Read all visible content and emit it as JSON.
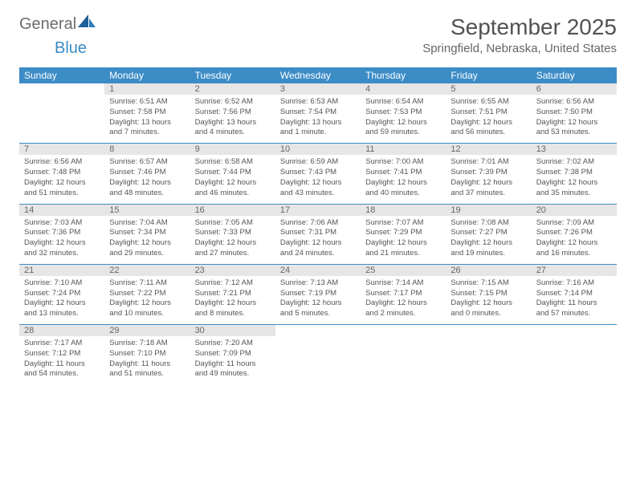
{
  "logo": {
    "part1": "General",
    "part2": "Blue"
  },
  "title": "September 2025",
  "location": "Springfield, Nebraska, United States",
  "colors": {
    "header_bg": "#3c8cc6",
    "header_text": "#ffffff",
    "daynum_bg": "#e6e6e6",
    "text": "#555555",
    "logo_gray": "#6b6b6b",
    "logo_blue": "#3b8bc4"
  },
  "weekdays": [
    "Sunday",
    "Monday",
    "Tuesday",
    "Wednesday",
    "Thursday",
    "Friday",
    "Saturday"
  ],
  "grid": [
    [
      {
        "n": "",
        "sr": "",
        "ss": "",
        "dl": ""
      },
      {
        "n": "1",
        "sr": "6:51 AM",
        "ss": "7:58 PM",
        "dl": "13 hours and 7 minutes."
      },
      {
        "n": "2",
        "sr": "6:52 AM",
        "ss": "7:56 PM",
        "dl": "13 hours and 4 minutes."
      },
      {
        "n": "3",
        "sr": "6:53 AM",
        "ss": "7:54 PM",
        "dl": "13 hours and 1 minute."
      },
      {
        "n": "4",
        "sr": "6:54 AM",
        "ss": "7:53 PM",
        "dl": "12 hours and 59 minutes."
      },
      {
        "n": "5",
        "sr": "6:55 AM",
        "ss": "7:51 PM",
        "dl": "12 hours and 56 minutes."
      },
      {
        "n": "6",
        "sr": "6:56 AM",
        "ss": "7:50 PM",
        "dl": "12 hours and 53 minutes."
      }
    ],
    [
      {
        "n": "7",
        "sr": "6:56 AM",
        "ss": "7:48 PM",
        "dl": "12 hours and 51 minutes."
      },
      {
        "n": "8",
        "sr": "6:57 AM",
        "ss": "7:46 PM",
        "dl": "12 hours and 48 minutes."
      },
      {
        "n": "9",
        "sr": "6:58 AM",
        "ss": "7:44 PM",
        "dl": "12 hours and 46 minutes."
      },
      {
        "n": "10",
        "sr": "6:59 AM",
        "ss": "7:43 PM",
        "dl": "12 hours and 43 minutes."
      },
      {
        "n": "11",
        "sr": "7:00 AM",
        "ss": "7:41 PM",
        "dl": "12 hours and 40 minutes."
      },
      {
        "n": "12",
        "sr": "7:01 AM",
        "ss": "7:39 PM",
        "dl": "12 hours and 37 minutes."
      },
      {
        "n": "13",
        "sr": "7:02 AM",
        "ss": "7:38 PM",
        "dl": "12 hours and 35 minutes."
      }
    ],
    [
      {
        "n": "14",
        "sr": "7:03 AM",
        "ss": "7:36 PM",
        "dl": "12 hours and 32 minutes."
      },
      {
        "n": "15",
        "sr": "7:04 AM",
        "ss": "7:34 PM",
        "dl": "12 hours and 29 minutes."
      },
      {
        "n": "16",
        "sr": "7:05 AM",
        "ss": "7:33 PM",
        "dl": "12 hours and 27 minutes."
      },
      {
        "n": "17",
        "sr": "7:06 AM",
        "ss": "7:31 PM",
        "dl": "12 hours and 24 minutes."
      },
      {
        "n": "18",
        "sr": "7:07 AM",
        "ss": "7:29 PM",
        "dl": "12 hours and 21 minutes."
      },
      {
        "n": "19",
        "sr": "7:08 AM",
        "ss": "7:27 PM",
        "dl": "12 hours and 19 minutes."
      },
      {
        "n": "20",
        "sr": "7:09 AM",
        "ss": "7:26 PM",
        "dl": "12 hours and 16 minutes."
      }
    ],
    [
      {
        "n": "21",
        "sr": "7:10 AM",
        "ss": "7:24 PM",
        "dl": "12 hours and 13 minutes."
      },
      {
        "n": "22",
        "sr": "7:11 AM",
        "ss": "7:22 PM",
        "dl": "12 hours and 10 minutes."
      },
      {
        "n": "23",
        "sr": "7:12 AM",
        "ss": "7:21 PM",
        "dl": "12 hours and 8 minutes."
      },
      {
        "n": "24",
        "sr": "7:13 AM",
        "ss": "7:19 PM",
        "dl": "12 hours and 5 minutes."
      },
      {
        "n": "25",
        "sr": "7:14 AM",
        "ss": "7:17 PM",
        "dl": "12 hours and 2 minutes."
      },
      {
        "n": "26",
        "sr": "7:15 AM",
        "ss": "7:15 PM",
        "dl": "12 hours and 0 minutes."
      },
      {
        "n": "27",
        "sr": "7:16 AM",
        "ss": "7:14 PM",
        "dl": "11 hours and 57 minutes."
      }
    ],
    [
      {
        "n": "28",
        "sr": "7:17 AM",
        "ss": "7:12 PM",
        "dl": "11 hours and 54 minutes."
      },
      {
        "n": "29",
        "sr": "7:18 AM",
        "ss": "7:10 PM",
        "dl": "11 hours and 51 minutes."
      },
      {
        "n": "30",
        "sr": "7:20 AM",
        "ss": "7:09 PM",
        "dl": "11 hours and 49 minutes."
      },
      {
        "n": "",
        "sr": "",
        "ss": "",
        "dl": ""
      },
      {
        "n": "",
        "sr": "",
        "ss": "",
        "dl": ""
      },
      {
        "n": "",
        "sr": "",
        "ss": "",
        "dl": ""
      },
      {
        "n": "",
        "sr": "",
        "ss": "",
        "dl": ""
      }
    ]
  ],
  "labels": {
    "sunrise": "Sunrise:",
    "sunset": "Sunset:",
    "daylight": "Daylight:"
  }
}
